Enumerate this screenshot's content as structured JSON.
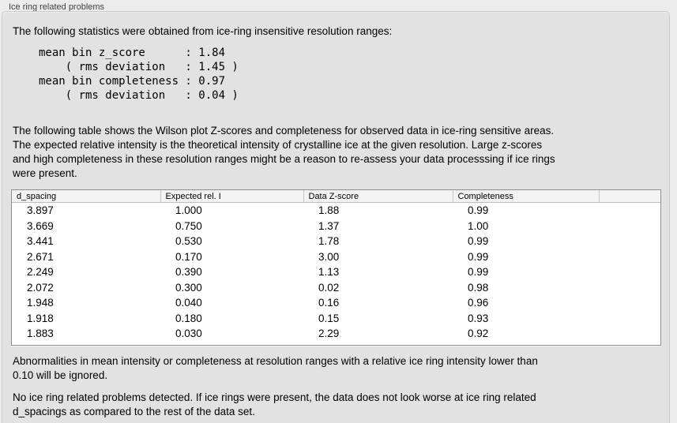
{
  "panel": {
    "title": "Ice ring related problems"
  },
  "intro": "The following statistics were obtained from ice-ring insensitive resolution ranges:",
  "stats": "mean bin z_score      : 1.84\n    ( rms deviation   : 1.45 )\nmean bin completeness : 0.97\n    ( rms deviation   : 0.04 )",
  "description": "The following table shows the Wilson plot Z-scores and completeness for observed data in ice-ring sensitive areas.\nThe expected relative intensity is the theoretical intensity of crystalline ice at the given resolution. Large z-scores\nand high completeness in these resolution ranges might be a reason to re-assess your data processsing if ice rings\nwere present.",
  "table": {
    "columns": [
      "d_spacing",
      "Expected rel. I",
      "Data Z-score",
      "Completeness"
    ],
    "rows": [
      {
        "d_spacing": "3.897",
        "expected_rel_i": "1.000",
        "data_z_score": "1.88",
        "completeness": "0.99"
      },
      {
        "d_spacing": "3.669",
        "expected_rel_i": "0.750",
        "data_z_score": "1.37",
        "completeness": "1.00"
      },
      {
        "d_spacing": "3.441",
        "expected_rel_i": "0.530",
        "data_z_score": "1.78",
        "completeness": "0.99"
      },
      {
        "d_spacing": "2.671",
        "expected_rel_i": "0.170",
        "data_z_score": "3.00",
        "completeness": "0.99"
      },
      {
        "d_spacing": "2.249",
        "expected_rel_i": "0.390",
        "data_z_score": "1.13",
        "completeness": "0.99"
      },
      {
        "d_spacing": "2.072",
        "expected_rel_i": "0.300",
        "data_z_score": "0.02",
        "completeness": "0.98"
      },
      {
        "d_spacing": "1.948",
        "expected_rel_i": "0.040",
        "data_z_score": "0.16",
        "completeness": "0.96"
      },
      {
        "d_spacing": "1.918",
        "expected_rel_i": "0.180",
        "data_z_score": "0.15",
        "completeness": "0.93"
      },
      {
        "d_spacing": "1.883",
        "expected_rel_i": "0.030",
        "data_z_score": "2.29",
        "completeness": "0.92"
      }
    ]
  },
  "footnote": "Abnormalities in mean intensity or completeness at resolution ranges with a relative ice ring intensity lower than\n0.10 will be ignored.",
  "conclusion": "No ice ring related problems detected. If ice rings were present, the data does not look worse at ice ring related\nd_spacings as compared to the rest of the data set.",
  "colors": {
    "page_bg": "#ececec",
    "groupbox_bg": "#e2e2e2",
    "table_border": "#8e8e8e",
    "header_bg": "#f3f3f3"
  }
}
